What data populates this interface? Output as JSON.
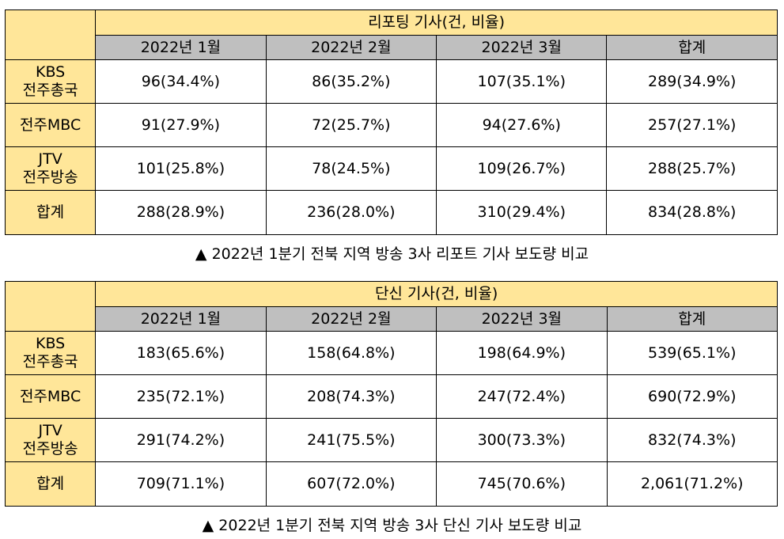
{
  "tables": [
    {
      "group_header": "리포팅 기사(건, 비율)",
      "columns": [
        "2022년 1월",
        "2022년 2월",
        "2022년 3월",
        "합계"
      ],
      "rows": [
        {
          "label": [
            "KBS",
            "전주총국"
          ],
          "cells": [
            "96(34.4%)",
            "86(35.2%)",
            "107(35.1%)",
            "289(34.9%)"
          ]
        },
        {
          "label": [
            "전주MBC"
          ],
          "cells": [
            "91(27.9%)",
            "72(25.7%)",
            "94(27.6%)",
            "257(27.1%)"
          ]
        },
        {
          "label": [
            "JTV",
            "전주방송"
          ],
          "cells": [
            "101(25.8%)",
            "78(24.5%)",
            "109(26.7%)",
            "288(25.7%)"
          ]
        },
        {
          "label": [
            "합계"
          ],
          "cells": [
            "288(28.9%)",
            "236(28.0%)",
            "310(29.4%)",
            "834(28.8%)"
          ]
        }
      ],
      "caption": "▲ 2022년 1분기 전북 지역 방송 3사 리포트 기사 보도량 비교"
    },
    {
      "group_header": "단신 기사(건, 비율)",
      "columns": [
        "2022년 1월",
        "2022년 2월",
        "2022년 3월",
        "합계"
      ],
      "rows": [
        {
          "label": [
            "KBS",
            "전주총국"
          ],
          "cells": [
            "183(65.6%)",
            "158(64.8%)",
            "198(64.9%)",
            "539(65.1%)"
          ]
        },
        {
          "label": [
            "전주MBC"
          ],
          "cells": [
            "235(72.1%)",
            "208(74.3%)",
            "247(72.4%)",
            "690(72.9%)"
          ]
        },
        {
          "label": [
            "JTV",
            "전주방송"
          ],
          "cells": [
            "291(74.2%)",
            "241(75.5%)",
            "300(73.3%)",
            "832(74.3%)"
          ]
        },
        {
          "label": [
            "합계"
          ],
          "cells": [
            "709(71.1%)",
            "607(72.0%)",
            "745(70.6%)",
            "2,061(71.2%)"
          ]
        }
      ],
      "caption": "▲ 2022년 1분기 전북 지역 방송 3사 단신 기사 보도량 비교"
    }
  ],
  "colors": {
    "header_yellow": "#ffe699",
    "header_gray": "#bfbfbf"
  }
}
